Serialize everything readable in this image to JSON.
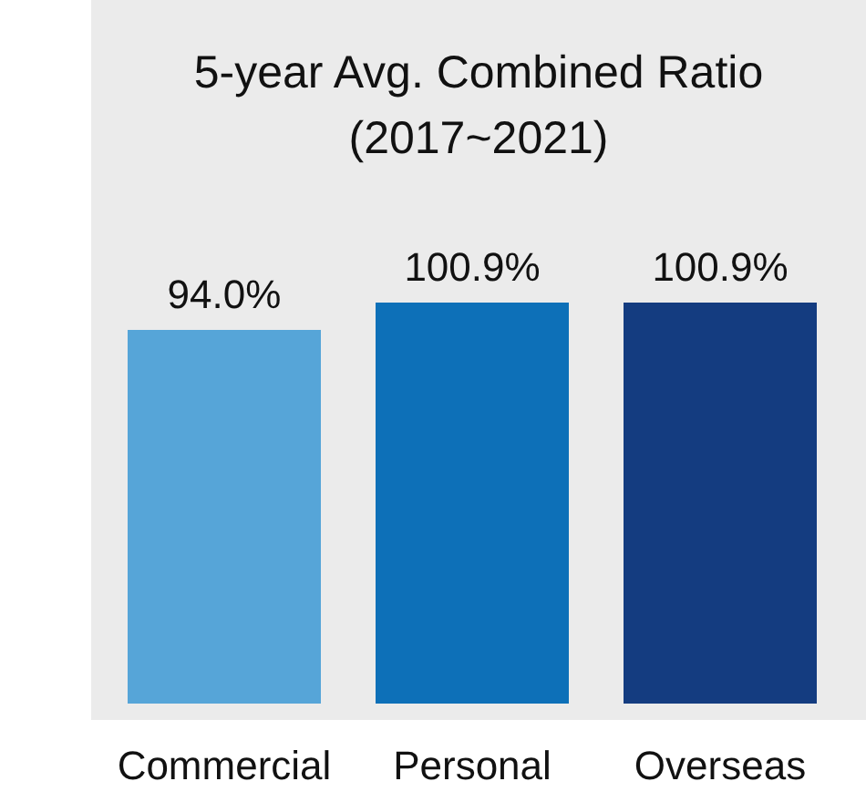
{
  "chart_data": {
    "type": "bar",
    "title": "5-year Avg. Combined Ratio\n(2017~2021)",
    "categories": [
      "Commercial",
      "Personal",
      "Overseas"
    ],
    "values": [
      94.0,
      100.9,
      100.9
    ],
    "colors": [
      "#56a5d8",
      "#0d70b8",
      "#143c80"
    ],
    "value_labels": [
      "94.0%",
      "100.9%",
      "100.9%"
    ],
    "relative": false,
    "grid": false,
    "legend": false
  }
}
